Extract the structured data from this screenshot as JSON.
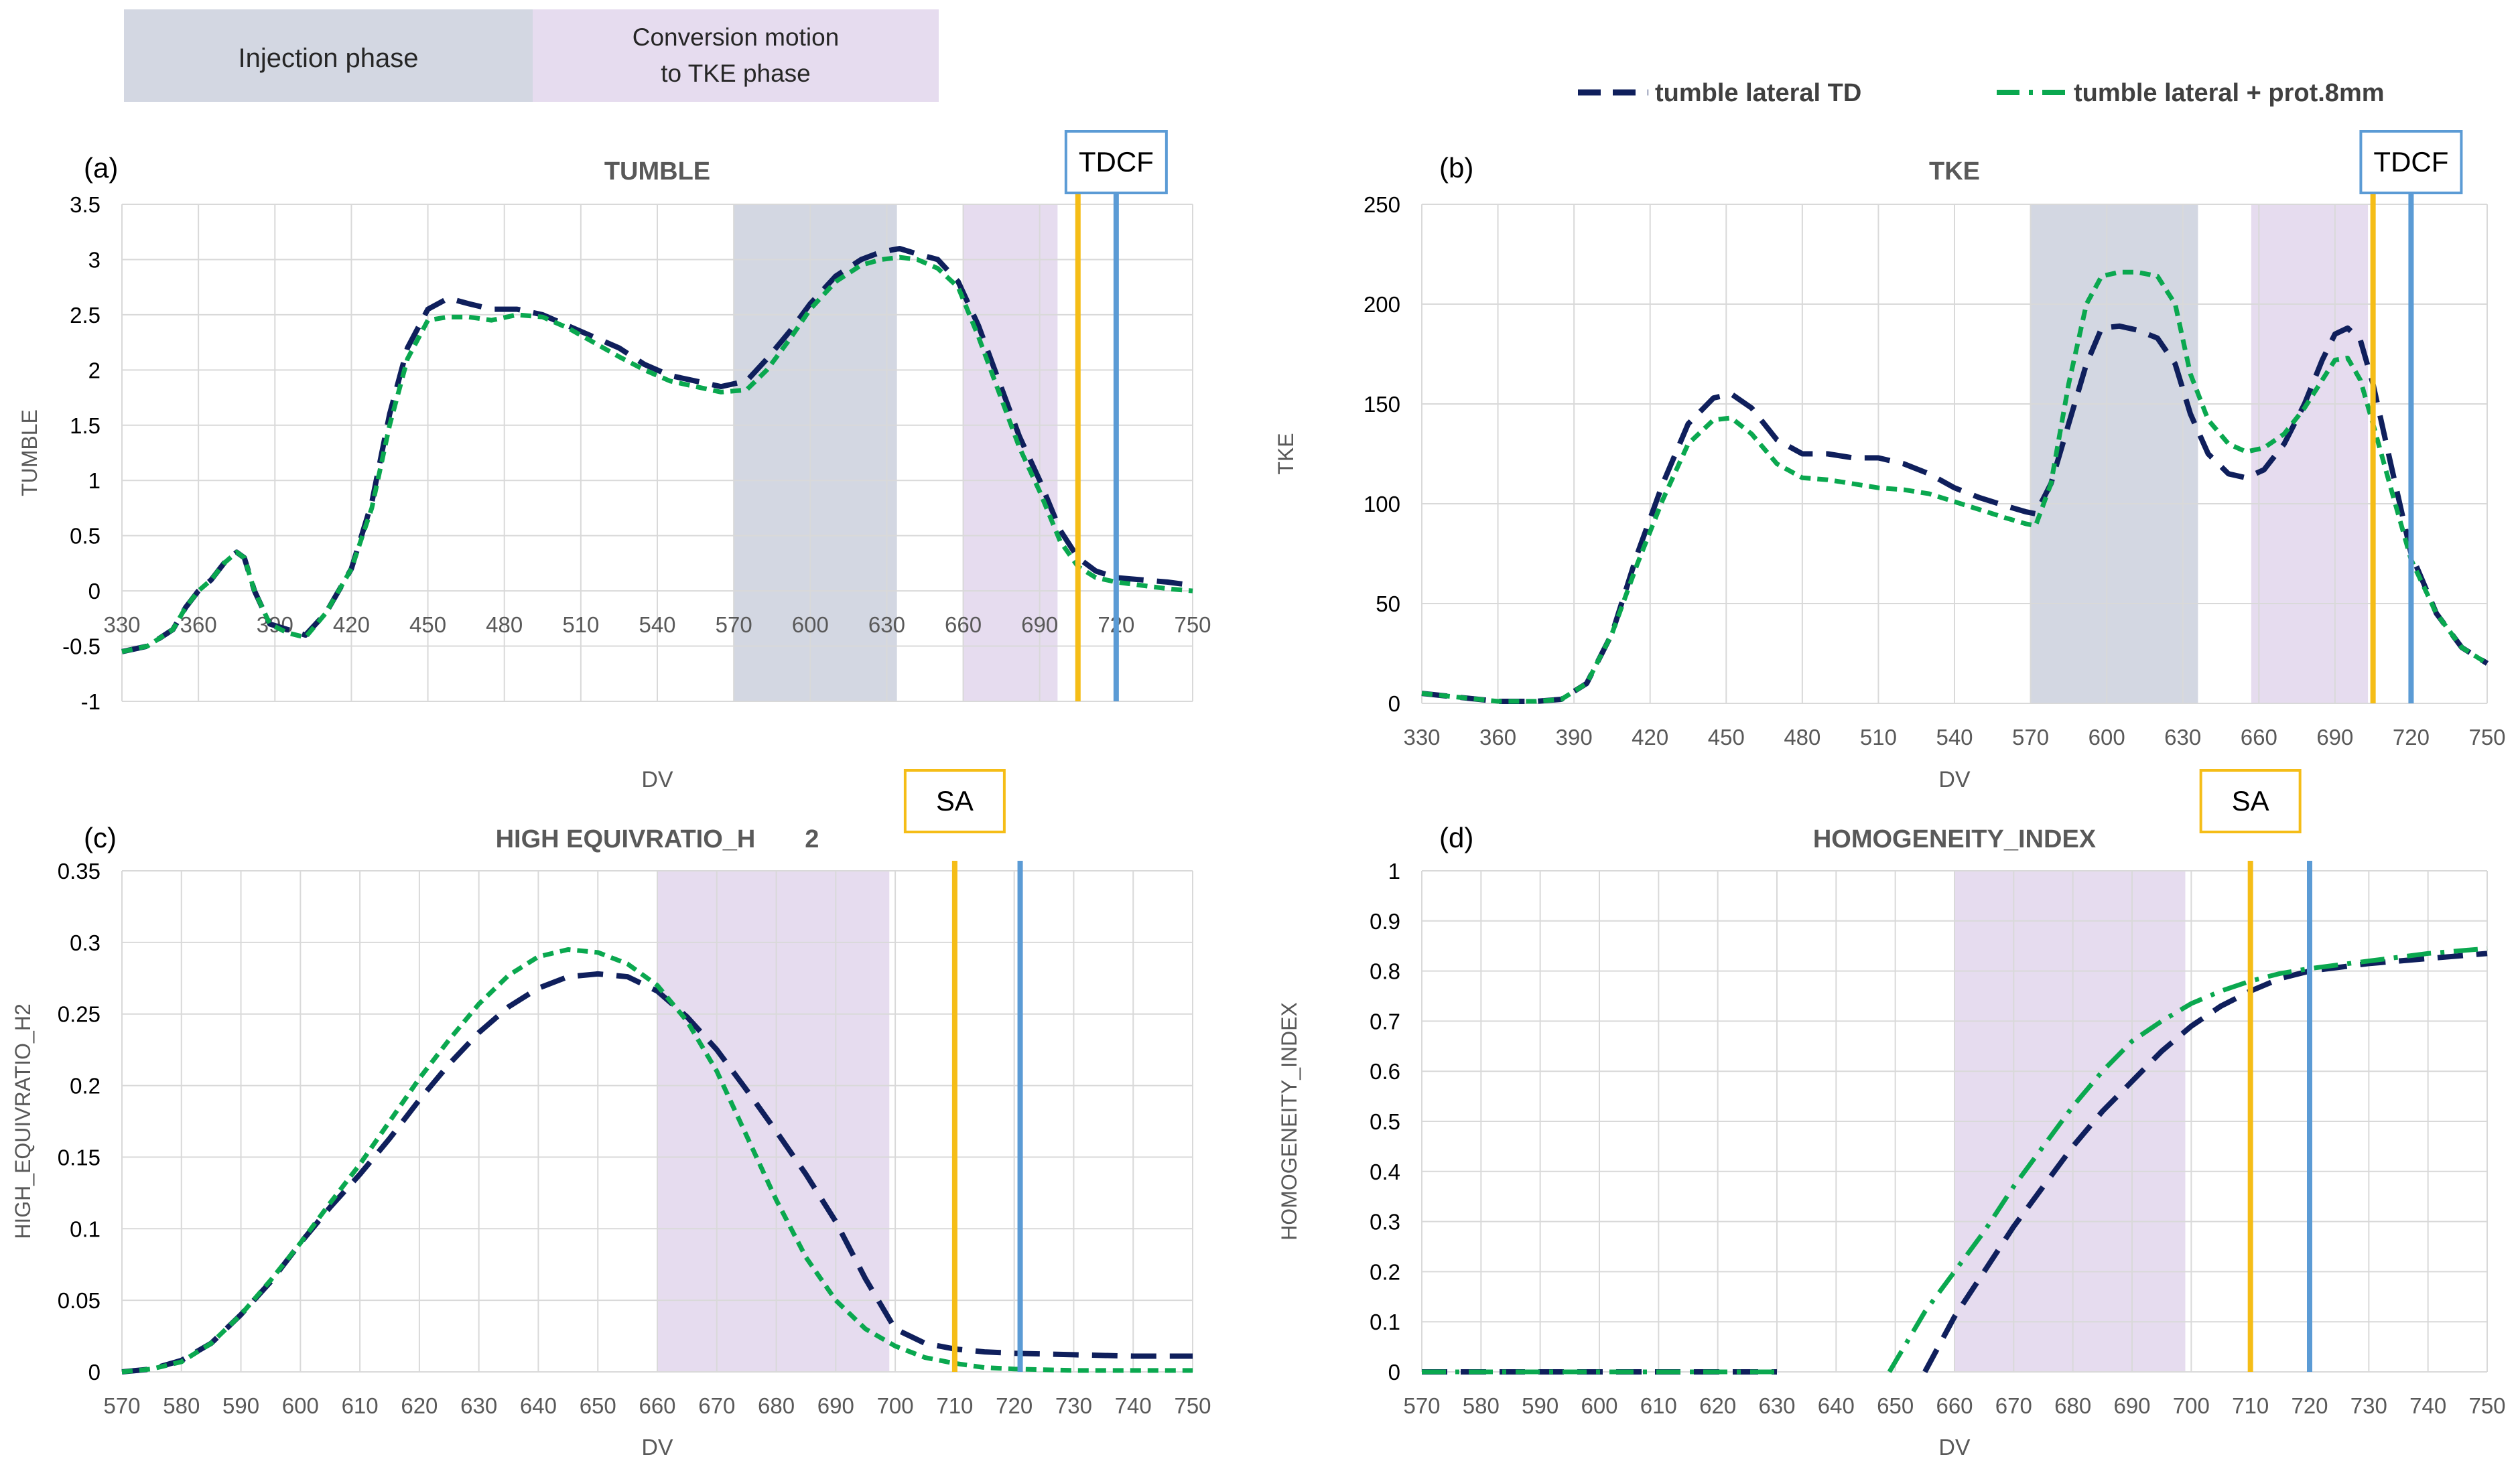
{
  "colors": {
    "series1": "#0f1f5c",
    "series2": "#0aa84f",
    "injection": "#d3d7e2",
    "conversion": "#e6dcef",
    "sa_line": "#f5bd17",
    "tdcf_line": "#5b9bd5",
    "grid": "#d9d9d9",
    "axis_text": "#595959"
  },
  "header": {
    "injection_label": "Injection phase",
    "conversion_label_1": "Conversion motion",
    "conversion_label_2": "to TKE phase"
  },
  "legend": {
    "series1": "tumble lateral TD",
    "series2": "tumble lateral + prot.8mm"
  },
  "chart_data": [
    {
      "type": "line",
      "panel_label": "(a)",
      "title": "TUMBLE",
      "xlabel": "DV",
      "ylabel": "TUMBLE",
      "xlim": [
        330,
        750
      ],
      "ylim": [
        -1,
        3.5
      ],
      "xticks": [
        330,
        360,
        390,
        420,
        450,
        480,
        510,
        540,
        570,
        600,
        630,
        660,
        690,
        720,
        750
      ],
      "xtick_labels": [
        "330",
        "360",
        "390",
        "420",
        "450",
        "480",
        "510",
        "540",
        "570",
        "600",
        "630",
        "660",
        "690",
        "720",
        "750"
      ],
      "yticks": [
        -1,
        -0.5,
        0,
        0.5,
        1,
        1.5,
        2,
        2.5,
        3,
        3.5
      ],
      "ytick_labels": [
        "-1",
        "-0.5",
        "0",
        "0.5",
        "1",
        "1.5",
        "2",
        "2.5",
        "3",
        "3.5"
      ],
      "bands": [
        {
          "phase": "injection",
          "from": 570,
          "to": 634
        },
        {
          "phase": "conversion",
          "from": 660,
          "to": 697
        }
      ],
      "vlines": [
        {
          "name": "SA",
          "x": 705,
          "color_key": "sa_line",
          "label": "",
          "boxed": false
        },
        {
          "name": "TDCF",
          "x": 720,
          "color_key": "tdcf_line",
          "label": "TDCF",
          "boxed": true
        }
      ],
      "series": [
        {
          "name": "tumble lateral TD",
          "style": "longdash",
          "color_key": "series1",
          "x": [
            330,
            340,
            350,
            355,
            360,
            365,
            370,
            375,
            378,
            382,
            388,
            395,
            402,
            410,
            420,
            428,
            435,
            442,
            450,
            458,
            466,
            475,
            485,
            495,
            505,
            515,
            525,
            535,
            545,
            555,
            565,
            575,
            583,
            592,
            600,
            610,
            620,
            628,
            635,
            642,
            650,
            658,
            666,
            674,
            682,
            690,
            698,
            705,
            712,
            720,
            730,
            740,
            750
          ],
          "y": [
            -0.55,
            -0.5,
            -0.35,
            -0.15,
            0.0,
            0.1,
            0.25,
            0.35,
            0.3,
            0.0,
            -0.3,
            -0.35,
            -0.4,
            -0.2,
            0.2,
            0.8,
            1.6,
            2.2,
            2.55,
            2.65,
            2.6,
            2.55,
            2.55,
            2.5,
            2.4,
            2.3,
            2.2,
            2.05,
            1.95,
            1.9,
            1.85,
            1.9,
            2.1,
            2.35,
            2.6,
            2.85,
            3.0,
            3.07,
            3.1,
            3.05,
            3.0,
            2.8,
            2.4,
            1.9,
            1.4,
            1.0,
            0.55,
            0.3,
            0.18,
            0.12,
            0.1,
            0.08,
            0.05
          ]
        },
        {
          "name": "tumble lateral + prot.8mm",
          "style": "shortdash",
          "color_key": "series2",
          "x": [
            330,
            340,
            350,
            355,
            360,
            365,
            370,
            375,
            378,
            382,
            388,
            395,
            402,
            410,
            420,
            428,
            435,
            442,
            450,
            458,
            466,
            475,
            485,
            495,
            505,
            515,
            525,
            535,
            545,
            555,
            565,
            575,
            583,
            592,
            600,
            610,
            620,
            628,
            635,
            642,
            650,
            658,
            666,
            674,
            682,
            690,
            698,
            705,
            712,
            720,
            730,
            740,
            750
          ],
          "y": [
            -0.55,
            -0.5,
            -0.35,
            -0.15,
            0.0,
            0.1,
            0.25,
            0.35,
            0.3,
            0.0,
            -0.3,
            -0.38,
            -0.42,
            -0.2,
            0.2,
            0.75,
            1.5,
            2.1,
            2.45,
            2.48,
            2.48,
            2.45,
            2.5,
            2.48,
            2.38,
            2.25,
            2.12,
            2.0,
            1.9,
            1.85,
            1.8,
            1.82,
            2.0,
            2.28,
            2.55,
            2.8,
            2.95,
            3.0,
            3.02,
            3.0,
            2.92,
            2.75,
            2.3,
            1.8,
            1.3,
            0.9,
            0.45,
            0.22,
            0.12,
            0.08,
            0.05,
            0.02,
            0.0
          ]
        }
      ]
    },
    {
      "type": "line",
      "panel_label": "(b)",
      "title": "TKE",
      "xlabel": "DV",
      "ylabel": "TKE",
      "xlim": [
        330,
        750
      ],
      "ylim": [
        0,
        250
      ],
      "xticks": [
        330,
        360,
        390,
        420,
        450,
        480,
        510,
        540,
        570,
        600,
        630,
        660,
        690,
        720,
        750
      ],
      "xtick_labels": [
        "330",
        "360",
        "390",
        "420",
        "450",
        "480",
        "510",
        "540",
        "570",
        "600",
        "630",
        "660",
        "690",
        "720",
        "750"
      ],
      "yticks": [
        0,
        50,
        100,
        150,
        200,
        250
      ],
      "ytick_labels": [
        "0",
        "50",
        "100",
        "150",
        "200",
        "250"
      ],
      "bands": [
        {
          "phase": "injection",
          "from": 570,
          "to": 636
        },
        {
          "phase": "conversion",
          "from": 657,
          "to": 703
        }
      ],
      "vlines": [
        {
          "name": "SA",
          "x": 705,
          "color_key": "sa_line",
          "label": "",
          "boxed": false
        },
        {
          "name": "TDCF",
          "x": 720,
          "color_key": "tdcf_line",
          "label": "TDCF",
          "boxed": true
        }
      ],
      "series": [
        {
          "name": "tumble lateral TD",
          "style": "longdash",
          "color_key": "series1",
          "x": [
            330,
            345,
            360,
            375,
            385,
            395,
            405,
            415,
            425,
            435,
            445,
            452,
            460,
            470,
            480,
            490,
            500,
            510,
            520,
            530,
            540,
            550,
            560,
            568,
            572,
            578,
            585,
            592,
            598,
            605,
            612,
            620,
            627,
            633,
            640,
            648,
            655,
            662,
            670,
            678,
            685,
            690,
            695,
            700,
            705,
            712,
            720,
            730,
            740,
            750
          ],
          "y": [
            5,
            3,
            1,
            1,
            2,
            10,
            35,
            75,
            110,
            140,
            153,
            155,
            148,
            132,
            125,
            125,
            123,
            123,
            120,
            115,
            108,
            103,
            99,
            96,
            95,
            110,
            140,
            170,
            188,
            189,
            187,
            183,
            170,
            145,
            125,
            115,
            113,
            117,
            130,
            150,
            172,
            185,
            188,
            182,
            160,
            120,
            75,
            45,
            28,
            20
          ]
        },
        {
          "name": "tumble lateral + prot.8mm",
          "style": "shortdash",
          "color_key": "series2",
          "x": [
            330,
            345,
            360,
            375,
            385,
            395,
            405,
            415,
            425,
            435,
            445,
            452,
            460,
            470,
            480,
            490,
            500,
            510,
            520,
            530,
            540,
            550,
            560,
            568,
            572,
            578,
            585,
            592,
            598,
            605,
            612,
            620,
            627,
            633,
            640,
            648,
            655,
            662,
            670,
            678,
            685,
            690,
            695,
            700,
            705,
            712,
            720,
            730,
            740,
            750
          ],
          "y": [
            5,
            3,
            1,
            1,
            2,
            10,
            35,
            70,
            102,
            130,
            142,
            143,
            135,
            120,
            113,
            112,
            110,
            108,
            107,
            105,
            101,
            97,
            93,
            90,
            89,
            110,
            160,
            200,
            214,
            216,
            216,
            214,
            200,
            165,
            142,
            130,
            126,
            128,
            135,
            148,
            162,
            172,
            173,
            162,
            140,
            108,
            72,
            45,
            28,
            20
          ]
        }
      ]
    },
    {
      "type": "line",
      "panel_label": "(c)",
      "title": "HIGH EQUIVRATIO_H       2",
      "xlabel": "DV",
      "ylabel": "HIGH_EQUIVRATIO_H2",
      "xlim": [
        570,
        750
      ],
      "ylim": [
        0,
        0.35
      ],
      "xticks": [
        570,
        580,
        590,
        600,
        610,
        620,
        630,
        640,
        650,
        660,
        670,
        680,
        690,
        700,
        710,
        720,
        730,
        740,
        750
      ],
      "xtick_labels": [
        "570",
        "580",
        "590",
        "600",
        "610",
        "620",
        "630",
        "640",
        "650",
        "660",
        "670",
        "680",
        "690",
        "700",
        "710",
        "720",
        "730",
        "740",
        "750"
      ],
      "yticks": [
        0,
        0.05,
        0.1,
        0.15,
        0.2,
        0.25,
        0.3,
        0.35
      ],
      "ytick_labels": [
        "0",
        "0.05",
        "0.1",
        "0.15",
        "0.2",
        "0.25",
        "0.3",
        "0.35"
      ],
      "bands": [
        {
          "phase": "conversion",
          "from": 660,
          "to": 699
        }
      ],
      "vlines": [
        {
          "name": "SA",
          "x": 710,
          "color_key": "sa_line",
          "label": "SA",
          "boxed": true
        },
        {
          "name": "TDCF",
          "x": 721,
          "color_key": "tdcf_line",
          "label": "",
          "boxed": false
        }
      ],
      "series": [
        {
          "name": "tumble lateral TD",
          "style": "longdash",
          "color_key": "series1",
          "x": [
            570,
            575,
            580,
            585,
            590,
            595,
            600,
            605,
            610,
            615,
            620,
            625,
            630,
            635,
            640,
            645,
            650,
            655,
            660,
            665,
            670,
            675,
            680,
            685,
            690,
            695,
            700,
            705,
            710,
            715,
            720,
            730,
            740,
            750
          ],
          "y": [
            0.0,
            0.002,
            0.008,
            0.02,
            0.04,
            0.063,
            0.09,
            0.115,
            0.138,
            0.163,
            0.19,
            0.215,
            0.237,
            0.255,
            0.268,
            0.276,
            0.278,
            0.276,
            0.266,
            0.248,
            0.225,
            0.197,
            0.168,
            0.138,
            0.105,
            0.065,
            0.03,
            0.02,
            0.016,
            0.014,
            0.013,
            0.012,
            0.011,
            0.011
          ]
        },
        {
          "name": "tumble lateral + prot.8mm",
          "style": "shortdash",
          "color_key": "series2",
          "x": [
            570,
            575,
            580,
            585,
            590,
            595,
            600,
            605,
            610,
            615,
            620,
            625,
            630,
            635,
            640,
            645,
            650,
            655,
            660,
            665,
            670,
            675,
            680,
            685,
            690,
            695,
            700,
            705,
            710,
            715,
            720,
            730,
            740,
            750
          ],
          "y": [
            0.0,
            0.002,
            0.007,
            0.02,
            0.04,
            0.064,
            0.09,
            0.118,
            0.145,
            0.175,
            0.205,
            0.232,
            0.257,
            0.277,
            0.29,
            0.295,
            0.293,
            0.285,
            0.27,
            0.245,
            0.21,
            0.165,
            0.12,
            0.08,
            0.05,
            0.03,
            0.018,
            0.01,
            0.006,
            0.003,
            0.002,
            0.001,
            0.001,
            0.001
          ]
        }
      ]
    },
    {
      "type": "line",
      "panel_label": "(d)",
      "title": "HOMOGENEITY_INDEX",
      "xlabel": "DV",
      "ylabel": "HOMOGENEITY_INDEX",
      "xlim": [
        570,
        750
      ],
      "ylim": [
        0,
        1
      ],
      "xticks": [
        570,
        580,
        590,
        600,
        610,
        620,
        630,
        640,
        650,
        660,
        670,
        680,
        690,
        700,
        710,
        720,
        730,
        740,
        750
      ],
      "xtick_labels": [
        "570",
        "580",
        "590",
        "600",
        "610",
        "620",
        "630",
        "640",
        "650",
        "660",
        "670",
        "680",
        "690",
        "700",
        "710",
        "720",
        "730",
        "740",
        "750"
      ],
      "yticks": [
        0,
        0.1,
        0.2,
        0.3,
        0.4,
        0.5,
        0.6,
        0.7,
        0.8,
        0.9,
        1
      ],
      "ytick_labels": [
        "0",
        "0.1",
        "0.2",
        "0.3",
        "0.4",
        "0.5",
        "0.6",
        "0.7",
        "0.8",
        "0.9",
        "1"
      ],
      "bands": [
        {
          "phase": "conversion",
          "from": 660,
          "to": 699
        }
      ],
      "vlines": [
        {
          "name": "SA",
          "x": 710,
          "color_key": "sa_line",
          "label": "SA",
          "boxed": true
        },
        {
          "name": "TDCF",
          "x": 720,
          "color_key": "tdcf_line",
          "label": "",
          "boxed": false
        }
      ],
      "series": [
        {
          "name": "tumble lateral TD",
          "style": "longdash",
          "color_key": "series1",
          "segments": [
            {
              "x": [
                570,
                630
              ],
              "y": [
                0,
                0
              ]
            },
            {
              "x": [
                655,
                660,
                665,
                670,
                675,
                680,
                685,
                690,
                695,
                700,
                705,
                710,
                715,
                720,
                730,
                740,
                750
              ],
              "y": [
                0.0,
                0.11,
                0.2,
                0.29,
                0.37,
                0.45,
                0.52,
                0.58,
                0.64,
                0.69,
                0.73,
                0.76,
                0.785,
                0.8,
                0.815,
                0.825,
                0.835
              ]
            }
          ]
        },
        {
          "name": "tumble lateral + prot.8mm",
          "style": "dashdot",
          "color_key": "series2",
          "segments": [
            {
              "x": [
                570,
                630
              ],
              "y": [
                0,
                0
              ]
            },
            {
              "x": [
                649,
                655,
                660,
                665,
                670,
                675,
                680,
                685,
                690,
                695,
                700,
                705,
                710,
                715,
                720,
                730,
                740,
                750
              ],
              "y": [
                0.0,
                0.12,
                0.2,
                0.28,
                0.37,
                0.45,
                0.53,
                0.6,
                0.66,
                0.7,
                0.735,
                0.76,
                0.78,
                0.795,
                0.805,
                0.82,
                0.835,
                0.845
              ]
            }
          ]
        }
      ]
    }
  ]
}
